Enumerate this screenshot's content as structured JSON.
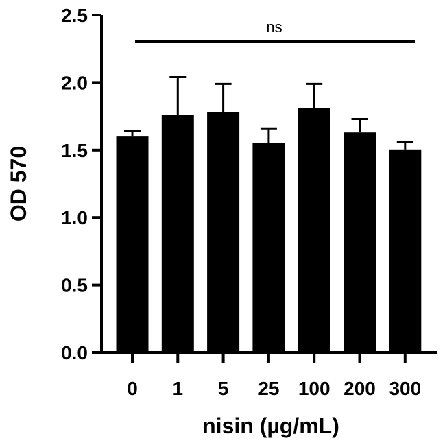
{
  "chart_data": {
    "type": "bar",
    "xlabel": "nisin (µg/mL)",
    "ylabel": "OD 570",
    "categories": [
      "0",
      "1",
      "5",
      "25",
      "100",
      "200",
      "300"
    ],
    "values": [
      1.6,
      1.76,
      1.78,
      1.55,
      1.81,
      1.63,
      1.5
    ],
    "error_upper": [
      0.04,
      0.28,
      0.21,
      0.11,
      0.18,
      0.1,
      0.06
    ],
    "ylim": [
      0,
      2.5
    ],
    "yticks": [
      "0.0",
      "0.5",
      "1.0",
      "1.5",
      "2.0",
      "2.5"
    ],
    "bar_color": "#000000",
    "grid": false,
    "annotation": "ns"
  }
}
